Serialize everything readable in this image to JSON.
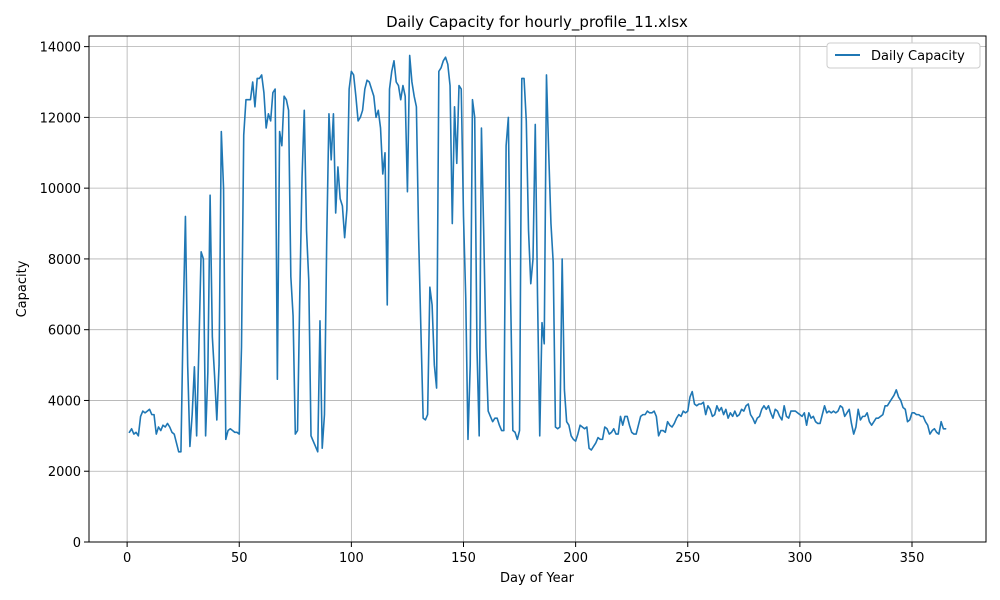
{
  "chart_data": {
    "type": "line",
    "title": "Daily Capacity for hourly_profile_11.xlsx",
    "xlabel": "Day of Year",
    "ylabel": "Capacity",
    "xlim": [
      -17,
      383
    ],
    "ylim": [
      0,
      14300
    ],
    "xticks": [
      0,
      50,
      100,
      150,
      200,
      250,
      300,
      350
    ],
    "yticks": [
      0,
      2000,
      4000,
      6000,
      8000,
      10000,
      12000,
      14000
    ],
    "grid": true,
    "legend_position": "top-right",
    "colors": {
      "series": "#1f77b4",
      "grid": "#b0b0b0"
    },
    "series": [
      {
        "name": "Daily Capacity",
        "x": [
          1,
          2,
          3,
          4,
          5,
          6,
          7,
          8,
          9,
          10,
          11,
          12,
          13,
          14,
          15,
          16,
          17,
          18,
          19,
          20,
          21,
          22,
          23,
          24,
          25,
          26,
          27,
          28,
          29,
          30,
          31,
          32,
          33,
          34,
          35,
          36,
          37,
          38,
          39,
          40,
          41,
          42,
          43,
          44,
          45,
          46,
          47,
          48,
          49,
          50,
          51,
          52,
          53,
          54,
          55,
          56,
          57,
          58,
          59,
          60,
          61,
          62,
          63,
          64,
          65,
          66,
          67,
          68,
          69,
          70,
          71,
          72,
          73,
          74,
          75,
          76,
          77,
          78,
          79,
          80,
          81,
          82,
          83,
          84,
          85,
          86,
          87,
          88,
          89,
          90,
          91,
          92,
          93,
          94,
          95,
          96,
          97,
          98,
          99,
          100,
          101,
          102,
          103,
          104,
          105,
          106,
          107,
          108,
          109,
          110,
          111,
          112,
          113,
          114,
          115,
          116,
          117,
          118,
          119,
          120,
          121,
          122,
          123,
          124,
          125,
          126,
          127,
          128,
          129,
          130,
          131,
          132,
          133,
          134,
          135,
          136,
          137,
          138,
          139,
          140,
          141,
          142,
          143,
          144,
          145,
          146,
          147,
          148,
          149,
          150,
          151,
          152,
          153,
          154,
          155,
          156,
          157,
          158,
          159,
          160,
          161,
          162,
          163,
          164,
          165,
          166,
          167,
          168,
          169,
          170,
          171,
          172,
          173,
          174,
          175,
          176,
          177,
          178,
          179,
          180,
          181,
          182,
          183,
          184,
          185,
          186,
          187,
          188,
          189,
          190,
          191,
          192,
          193,
          194,
          195,
          196,
          197,
          198,
          199,
          200,
          201,
          202,
          203,
          204,
          205,
          206,
          207,
          208,
          209,
          210,
          211,
          212,
          213,
          214,
          215,
          216,
          217,
          218,
          219,
          220,
          221,
          222,
          223,
          224,
          225,
          226,
          227,
          228,
          229,
          230,
          231,
          232,
          233,
          234,
          235,
          236,
          237,
          238,
          239,
          240,
          241,
          242,
          243,
          244,
          245,
          246,
          247,
          248,
          249,
          250,
          251,
          252,
          253,
          254,
          255,
          256,
          257,
          258,
          259,
          260,
          261,
          262,
          263,
          264,
          265,
          266,
          267,
          268,
          269,
          270,
          271,
          272,
          273,
          274,
          275,
          276,
          277,
          278,
          279,
          280,
          281,
          282,
          283,
          284,
          285,
          286,
          287,
          288,
          289,
          290,
          291,
          292,
          293,
          294,
          295,
          296,
          297,
          298,
          299,
          300,
          301,
          302,
          303,
          304,
          305,
          306,
          307,
          308,
          309,
          310,
          311,
          312,
          313,
          314,
          315,
          316,
          317,
          318,
          319,
          320,
          321,
          322,
          323,
          324,
          325,
          326,
          327,
          328,
          329,
          330,
          331,
          332,
          333,
          334,
          335,
          336,
          337,
          338,
          339,
          340,
          341,
          342,
          343,
          344,
          345,
          346,
          347,
          348,
          349,
          350,
          351,
          352,
          353,
          354,
          355,
          356,
          357,
          358,
          359,
          360,
          361,
          362,
          363,
          364,
          365
        ],
        "values": [
          3100,
          3200,
          3050,
          3100,
          3000,
          3550,
          3700,
          3650,
          3700,
          3750,
          3600,
          3600,
          3050,
          3250,
          3150,
          3300,
          3250,
          3350,
          3250,
          3100,
          3050,
          2800,
          2550,
          2550,
          6300,
          9200,
          5000,
          2700,
          3600,
          4950,
          3000,
          5500,
          8200,
          8000,
          3000,
          4800,
          9800,
          5800,
          4700,
          3450,
          5000,
          11600,
          10000,
          2900,
          3150,
          3200,
          3150,
          3100,
          3100,
          3050,
          5500,
          11500,
          12500,
          12500,
          12500,
          13000,
          12300,
          13100,
          13100,
          13200,
          12700,
          11700,
          12100,
          11900,
          12700,
          12800,
          4600,
          11600,
          11200,
          12600,
          12500,
          12200,
          7500,
          6400,
          3050,
          3150,
          7000,
          10300,
          12200,
          8800,
          7400,
          3000,
          2850,
          2700,
          2550,
          6250,
          2650,
          3600,
          8500,
          12100,
          10800,
          12100,
          9300,
          10600,
          9700,
          9500,
          8600,
          9400,
          12800,
          13300,
          13200,
          12600,
          11900,
          12000,
          12200,
          12800,
          13050,
          13000,
          12800,
          12600,
          12000,
          12200,
          11700,
          10400,
          11000,
          6700,
          12800,
          13300,
          13600,
          13000,
          12900,
          12500,
          12900,
          12600,
          9900,
          13750,
          13000,
          12600,
          12300,
          8600,
          6000,
          3500,
          3450,
          3600,
          7200,
          6700,
          5000,
          4350,
          13300,
          13400,
          13600,
          13700,
          13500,
          12900,
          9000,
          12300,
          10700,
          12900,
          12800,
          9200,
          6900,
          2900,
          5000,
          12500,
          12000,
          5500,
          3000,
          11700,
          8800,
          5500,
          3700,
          3550,
          3400,
          3500,
          3500,
          3300,
          3150,
          3150,
          11200,
          12000,
          7000,
          3150,
          3100,
          2900,
          3150,
          13100,
          13100,
          11900,
          8800,
          7300,
          8000,
          11800,
          7000,
          3000,
          6200,
          5600,
          13200,
          11000,
          9000,
          7900,
          3250,
          3200,
          3250,
          8000,
          4300,
          3400,
          3300,
          3000,
          2900,
          2850,
          3050,
          3300,
          3250,
          3200,
          3250,
          2650,
          2600,
          2700,
          2800,
          2950,
          2900,
          2900,
          3250,
          3200,
          3050,
          3100,
          3200,
          3050,
          3050,
          3550,
          3300,
          3550,
          3550,
          3300,
          3100,
          3050,
          3050,
          3300,
          3550,
          3600,
          3600,
          3700,
          3650,
          3650,
          3700,
          3550,
          3000,
          3150,
          3150,
          3100,
          3400,
          3300,
          3250,
          3350,
          3500,
          3600,
          3550,
          3700,
          3650,
          3700,
          4100,
          4250,
          3900,
          3850,
          3900,
          3900,
          3950,
          3600,
          3850,
          3750,
          3550,
          3600,
          3850,
          3700,
          3800,
          3600,
          3750,
          3500,
          3650,
          3550,
          3700,
          3550,
          3600,
          3750,
          3700,
          3850,
          3900,
          3600,
          3500,
          3350,
          3500,
          3550,
          3750,
          3850,
          3750,
          3850,
          3650,
          3500,
          3750,
          3700,
          3550,
          3450,
          3850,
          3550,
          3500,
          3700,
          3700,
          3700,
          3650,
          3600,
          3550,
          3650,
          3300,
          3650,
          3500,
          3550,
          3400,
          3350,
          3350,
          3600,
          3850,
          3650,
          3700,
          3650,
          3700,
          3650,
          3700,
          3850,
          3800,
          3550,
          3650,
          3750,
          3350,
          3050,
          3250,
          3750,
          3450,
          3550,
          3550,
          3650,
          3400,
          3300,
          3400,
          3500,
          3500,
          3550,
          3600,
          3850,
          3850,
          3950,
          4050,
          4150,
          4300,
          4100,
          4000,
          3800,
          3750,
          3400,
          3450,
          3650,
          3650,
          3600,
          3600,
          3550,
          3550,
          3400,
          3300,
          3050,
          3150,
          3200,
          3100,
          3050,
          3400,
          3200,
          3200
        ]
      }
    ]
  }
}
